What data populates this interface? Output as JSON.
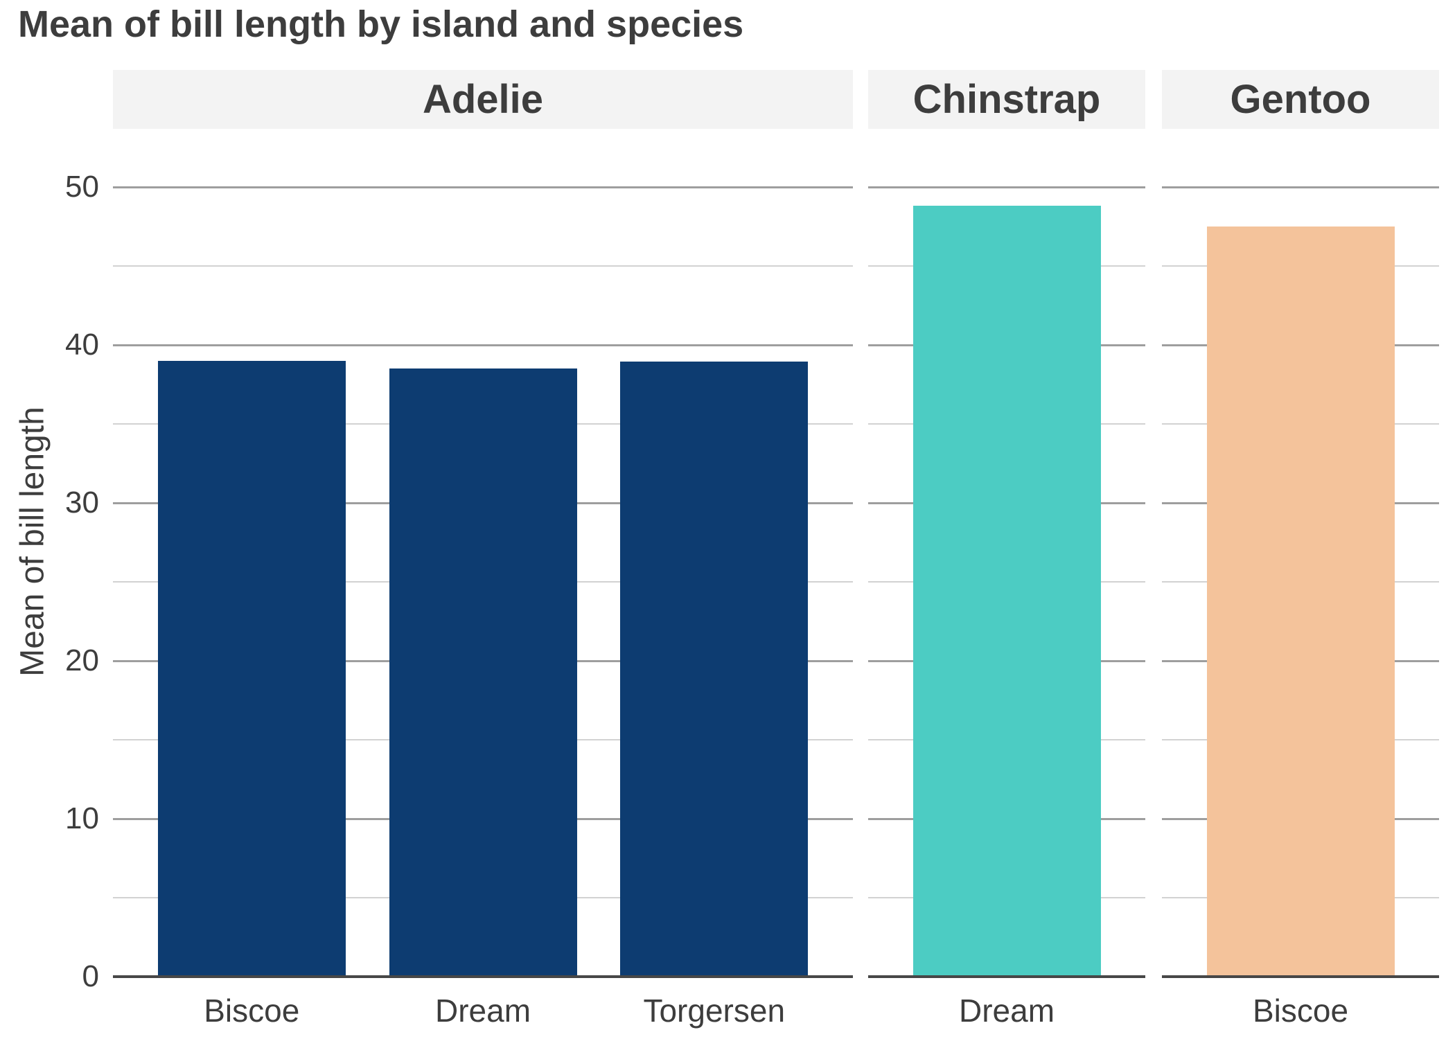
{
  "title": "Mean of bill length by island and species",
  "y_axis": {
    "label": "Mean of bill length",
    "tick_labels": [
      "0",
      "10",
      "20",
      "30",
      "40",
      "50"
    ],
    "tick_values": [
      0,
      10,
      20,
      30,
      40,
      50
    ]
  },
  "colors": {
    "adelie_bar": "#0d3c71",
    "chinstrap_bar": "#4cccc3",
    "gentoo_bar": "#f4c39b",
    "strip_background": "#f3f3f3",
    "text": "#3d3d3d",
    "major_gridline": "#9e9e9e",
    "minor_gridline": "#d2d2d2",
    "axis_line": "#474747"
  },
  "chart_data": {
    "type": "bar",
    "title": "Mean of bill length by island and species",
    "xlabel": "",
    "ylabel": "Mean of bill length",
    "ylim": [
      0,
      53.7
    ],
    "y_major_gridlines": [
      10,
      20,
      30,
      40,
      50
    ],
    "y_minor_gridlines": [
      5,
      15,
      25,
      35,
      45
    ],
    "grid": "horizontal, major and minor, no vertical grid",
    "legend": "none",
    "faceting": "columns by species, shared y axis",
    "facets": [
      {
        "species": "Adelie",
        "color": "#0d3c71",
        "categories": [
          "Biscoe",
          "Dream",
          "Torgersen"
        ],
        "values": [
          38.98,
          38.5,
          38.95
        ]
      },
      {
        "species": "Chinstrap",
        "color": "#4cccc3",
        "categories": [
          "Dream"
        ],
        "values": [
          48.83
        ]
      },
      {
        "species": "Gentoo",
        "color": "#f4c39b",
        "categories": [
          "Biscoe"
        ],
        "values": [
          47.5
        ]
      }
    ]
  }
}
